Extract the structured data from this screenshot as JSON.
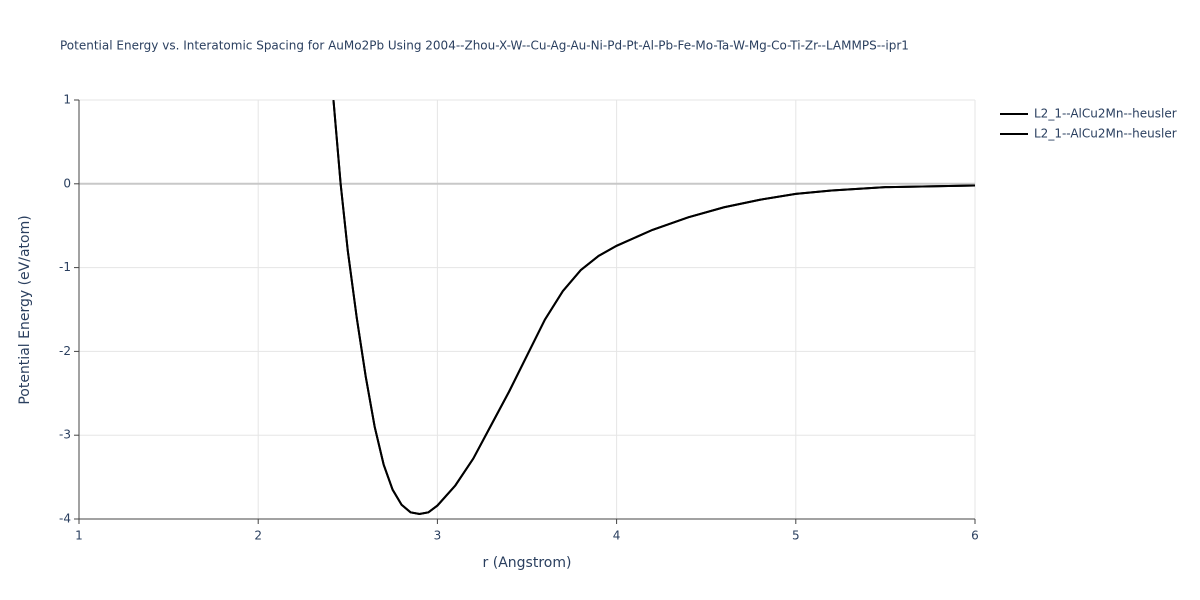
{
  "chart_data": {
    "type": "line",
    "title": "Potential Energy vs. Interatomic Spacing for AuMo2Pb Using 2004--Zhou-X-W--Cu-Ag-Au-Ni-Pd-Pt-Al-Pb-Fe-Mo-Ta-W-Mg-Co-Ti-Zr--LAMMPS--ipr1",
    "x_label": "r (Angstrom)",
    "y_label": "Potential Energy (eV/atom)",
    "x": [
      2.42,
      2.46,
      2.5,
      2.55,
      2.6,
      2.65,
      2.7,
      2.75,
      2.8,
      2.85,
      2.9,
      2.95,
      3.0,
      3.1,
      3.2,
      3.3,
      3.4,
      3.5,
      3.6,
      3.7,
      3.8,
      3.9,
      4.0,
      4.2,
      4.4,
      4.6,
      4.8,
      5.0,
      5.2,
      5.5,
      6.0
    ],
    "series": [
      {
        "name": "L2_1--AlCu2Mn--heusler",
        "color": "#000000",
        "values": [
          1.0,
          0.0,
          -0.8,
          -1.6,
          -2.3,
          -2.9,
          -3.35,
          -3.65,
          -3.83,
          -3.92,
          -3.94,
          -3.92,
          -3.84,
          -3.6,
          -3.28,
          -2.88,
          -2.48,
          -2.05,
          -1.62,
          -1.28,
          -1.03,
          -0.86,
          -0.74,
          -0.55,
          -0.4,
          -0.28,
          -0.19,
          -0.12,
          -0.08,
          -0.04,
          -0.02
        ]
      },
      {
        "name": "L2_1--AlCu2Mn--heusler",
        "color": "#000000",
        "values": [
          1.0,
          0.0,
          -0.8,
          -1.6,
          -2.3,
          -2.9,
          -3.35,
          -3.65,
          -3.83,
          -3.92,
          -3.94,
          -3.92,
          -3.84,
          -3.6,
          -3.28,
          -2.88,
          -2.48,
          -2.05,
          -1.62,
          -1.28,
          -1.03,
          -0.86,
          -0.74,
          -0.55,
          -0.4,
          -0.28,
          -0.19,
          -0.12,
          -0.08,
          -0.04,
          -0.02
        ]
      }
    ],
    "xlim": [
      1,
      6
    ],
    "xticks": [
      1,
      2,
      3,
      4,
      5,
      6
    ],
    "ylim": [
      -4,
      1
    ],
    "yticks": [
      -4,
      -3,
      -2,
      -1,
      0,
      1
    ],
    "grid": true
  }
}
